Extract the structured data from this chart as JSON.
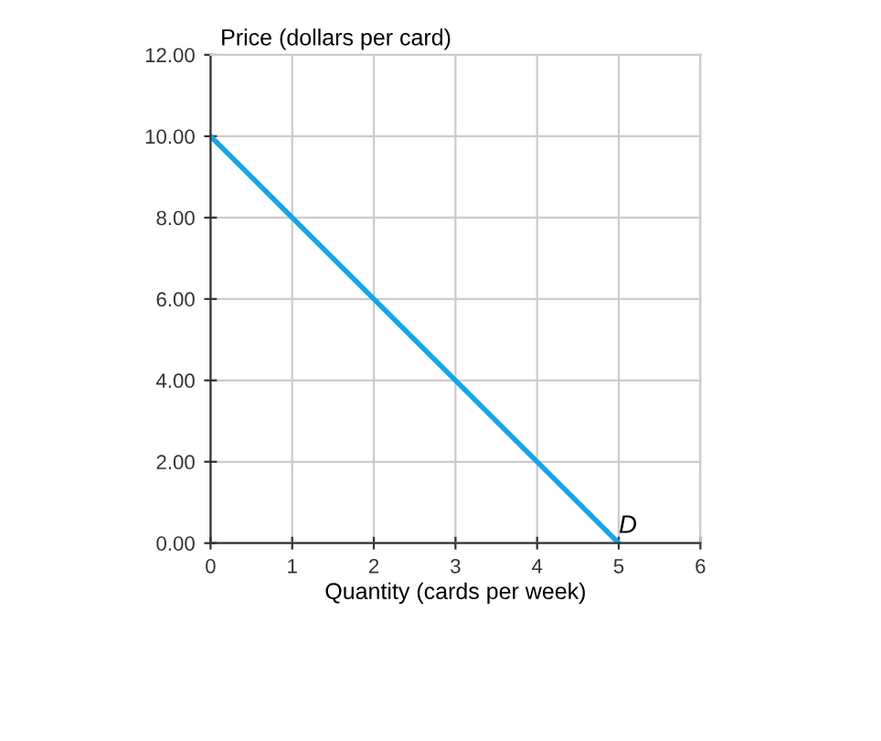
{
  "chart_data": {
    "type": "line",
    "xlabel": "Quantity (cards per week)",
    "ylabel": "Price (dollars per card)",
    "x": [
      0,
      5
    ],
    "series": [
      {
        "color": "#1aa3e8",
        "values": [
          10,
          0
        ]
      }
    ],
    "xlim": [
      0,
      6
    ],
    "xticks": [
      0,
      1,
      2,
      3,
      4,
      5,
      6
    ],
    "ylim": [
      0,
      12
    ],
    "yticks": [
      {
        "value": 0,
        "label": "0.00"
      },
      {
        "value": 2,
        "label": "2.00"
      },
      {
        "value": 4,
        "label": "4.00"
      },
      {
        "value": 6,
        "label": "6.00"
      },
      {
        "value": 8,
        "label": "8.00"
      },
      {
        "value": 10,
        "label": "10.00"
      },
      {
        "value": 12,
        "label": "12.00"
      }
    ],
    "annotations": [
      {
        "text": "D",
        "x": 5,
        "y": 0
      }
    ],
    "grid": true,
    "legend": false,
    "marker": "none",
    "line_style": "solid"
  }
}
